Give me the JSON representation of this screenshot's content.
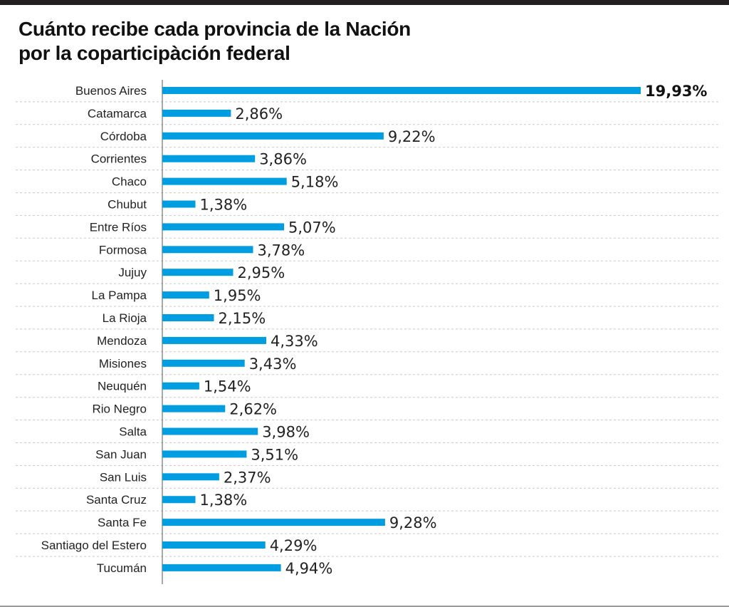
{
  "chart_data": {
    "type": "bar",
    "orientation": "horizontal",
    "title": "Cuánto recibe cada provincia de la Nación por la coparticipàción federal",
    "title_lines": [
      "Cuánto recibe cada provincia de la Nación",
      "por la coparticipàción federal"
    ],
    "categories": [
      "Buenos Aires",
      "Catamarca",
      "Córdoba",
      "Corrientes",
      "Chaco",
      "Chubut",
      "Entre Ríos",
      "Formosa",
      "Jujuy",
      "La Pampa",
      "La Rioja",
      "Mendoza",
      "Misiones",
      "Neuquén",
      "Rio Negro",
      "Salta",
      "San Juan",
      "San Luis",
      "Santa Cruz",
      "Santa Fe",
      "Santiago del Estero",
      "Tucumán"
    ],
    "values": [
      19.93,
      2.86,
      9.22,
      3.86,
      5.18,
      1.38,
      5.07,
      3.78,
      2.95,
      1.95,
      2.15,
      4.33,
      3.43,
      1.54,
      2.62,
      3.98,
      3.51,
      2.37,
      1.38,
      9.28,
      4.29,
      4.94
    ],
    "value_labels": [
      "19,93%",
      "2,86%",
      "9,22%",
      "3,86%",
      "5,18%",
      "1,38%",
      "5,07%",
      "3,78%",
      "2,95%",
      "1,95%",
      "2,15%",
      "4,33%",
      "3,43%",
      "1,54%",
      "2,62%",
      "3,98%",
      "3,51%",
      "2,37%",
      "1,38%",
      "9,28%",
      "4,29%",
      "4,94%"
    ],
    "highlight_index": 0,
    "xlim": [
      0,
      20
    ],
    "xlabel": "",
    "ylabel": "",
    "grid": "dashed horizontal separators",
    "bar_color": "#009ee0",
    "separator_color": "#c8c8c8",
    "axis_color": "#555555"
  }
}
